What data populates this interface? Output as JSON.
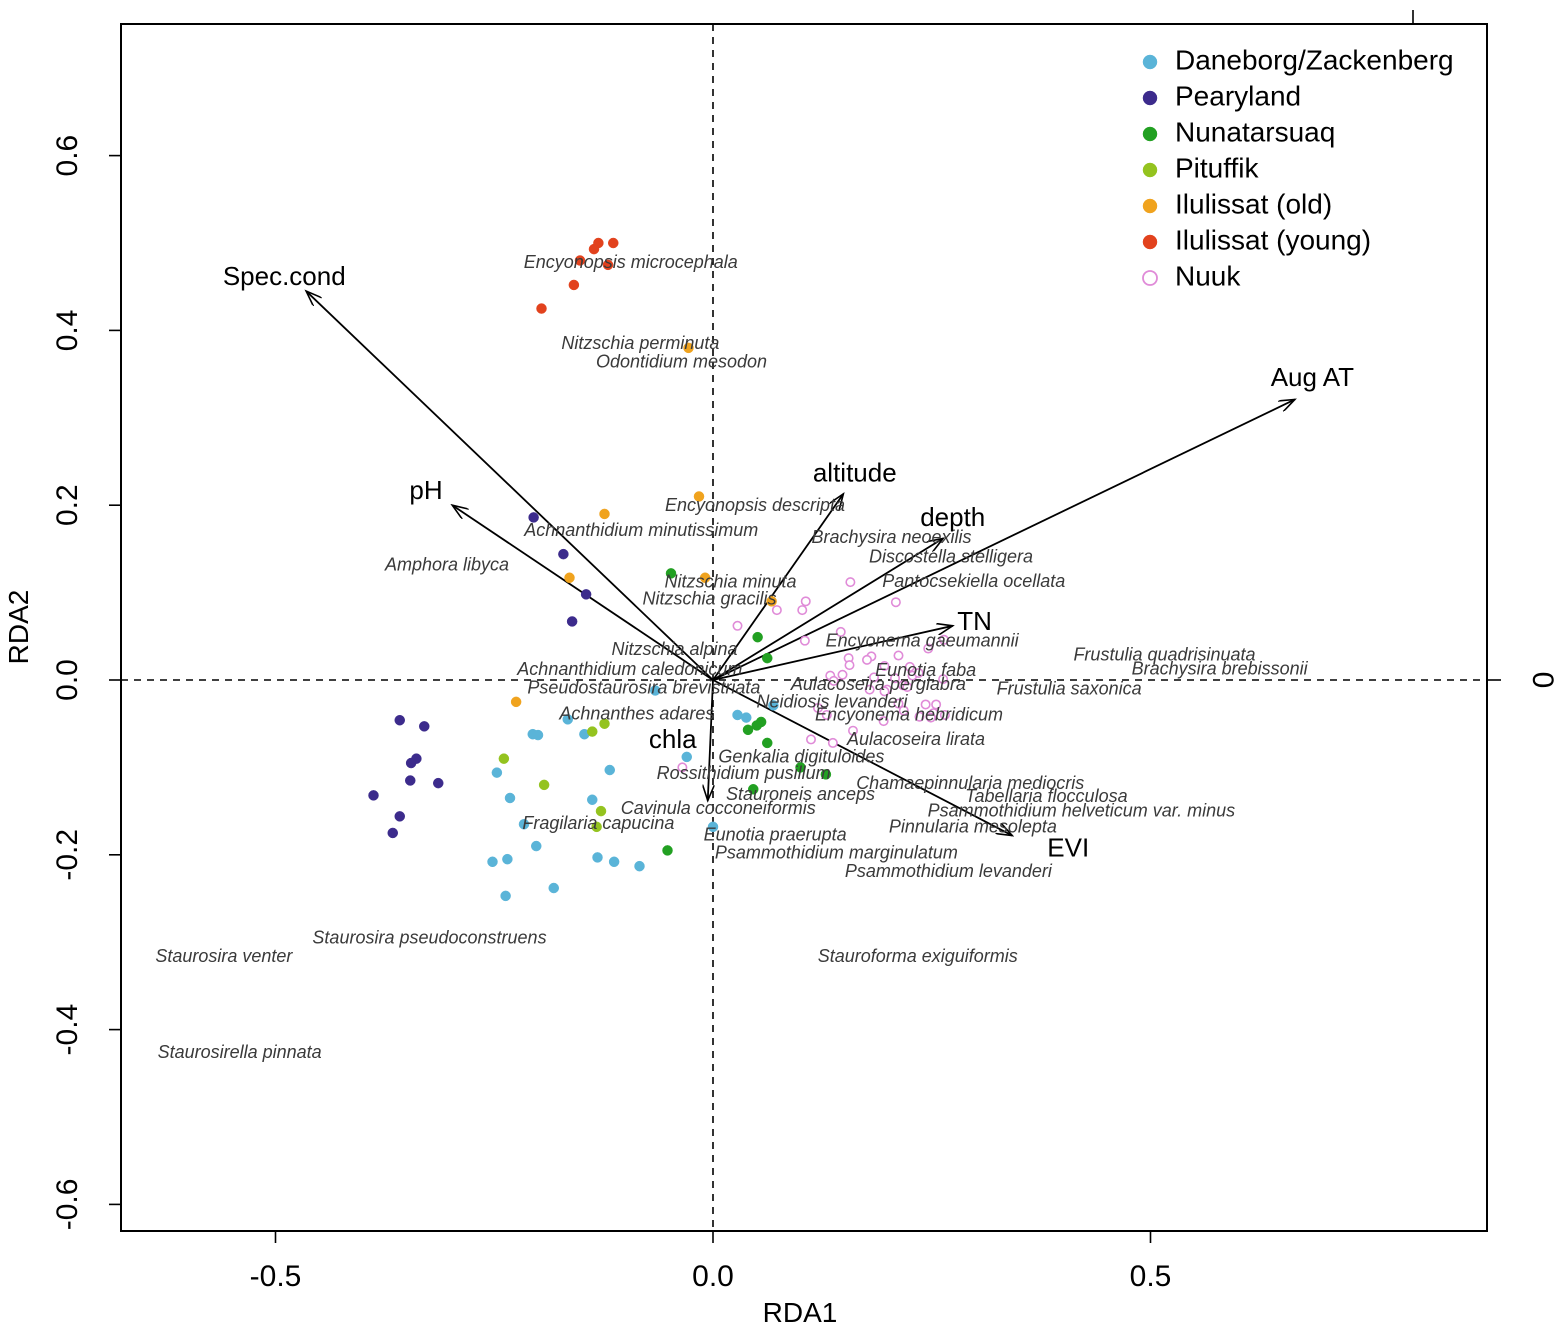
{
  "chart_data": {
    "type": "scatter",
    "subtype": "rda-biplot",
    "title": "",
    "xlabel": "RDA1",
    "ylabel": "RDA2",
    "xlim": [
      -0.68,
      0.89
    ],
    "ylim": [
      -0.63,
      0.75
    ],
    "x_ticks": [
      -0.5,
      0.0,
      0.5
    ],
    "x_tick_labels": [
      "-0.5",
      "0.0",
      "0.5"
    ],
    "y_ticks": [
      -0.6,
      -0.4,
      -0.2,
      0.0,
      0.2,
      0.4,
      0.6
    ],
    "y_tick_labels": [
      "-0.6",
      "-0.4",
      "-0.2",
      "0.0",
      "0.2",
      "0.4",
      "0.6"
    ],
    "top_axis_ticks": [
      0.8
    ],
    "right_axis_ticks": [
      0.0
    ],
    "right_axis_tick_labels": [
      "0"
    ],
    "reference_lines": {
      "x": 0,
      "y": 0,
      "style": "dashed"
    },
    "legend_position": "top-right",
    "series": [
      {
        "name": "Daneborg/Zackenberg",
        "color": "#5ab4d8",
        "marker": "filled-circle",
        "points": [
          [
            -0.066,
            -0.012
          ],
          [
            -0.166,
            -0.045
          ],
          [
            -0.206,
            -0.062
          ],
          [
            -0.2,
            -0.063
          ],
          [
            -0.147,
            -0.062
          ],
          [
            -0.247,
            -0.106
          ],
          [
            -0.232,
            -0.135
          ],
          [
            -0.216,
            -0.165
          ],
          [
            -0.202,
            -0.19
          ],
          [
            -0.252,
            -0.208
          ],
          [
            -0.235,
            -0.205
          ],
          [
            -0.182,
            -0.238
          ],
          [
            -0.237,
            -0.247
          ],
          [
            -0.132,
            -0.203
          ],
          [
            -0.113,
            -0.208
          ],
          [
            -0.084,
            -0.213
          ],
          [
            -0.118,
            -0.103
          ],
          [
            -0.138,
            -0.137
          ],
          [
            -0.03,
            -0.088
          ],
          [
            0.028,
            -0.04
          ],
          [
            0.038,
            -0.043
          ],
          [
            0.069,
            -0.029
          ],
          [
            0.0,
            -0.168
          ]
        ]
      },
      {
        "name": "Pearyland",
        "color": "#3c2b8c",
        "marker": "filled-circle",
        "points": [
          [
            -0.205,
            0.186
          ],
          [
            -0.171,
            0.144
          ],
          [
            -0.145,
            0.098
          ],
          [
            -0.161,
            0.067
          ],
          [
            -0.358,
            -0.046
          ],
          [
            -0.33,
            -0.053
          ],
          [
            -0.339,
            -0.09
          ],
          [
            -0.345,
            -0.095
          ],
          [
            -0.346,
            -0.115
          ],
          [
            -0.314,
            -0.118
          ],
          [
            -0.388,
            -0.132
          ],
          [
            -0.358,
            -0.156
          ],
          [
            -0.366,
            -0.175
          ]
        ]
      },
      {
        "name": "Nunatarsuaq",
        "color": "#22a022",
        "marker": "filled-circle",
        "points": [
          [
            -0.048,
            0.122
          ],
          [
            0.051,
            0.049
          ],
          [
            0.062,
            0.025
          ],
          [
            0.055,
            -0.048
          ],
          [
            0.05,
            -0.052
          ],
          [
            0.04,
            -0.057
          ],
          [
            0.062,
            -0.072
          ],
          [
            0.1,
            -0.1
          ],
          [
            0.129,
            -0.108
          ],
          [
            0.046,
            -0.125
          ],
          [
            -0.052,
            -0.195
          ]
        ]
      },
      {
        "name": "Pituffik",
        "color": "#94c31f",
        "marker": "filled-circle",
        "points": [
          [
            -0.239,
            -0.09
          ],
          [
            -0.193,
            -0.12
          ],
          [
            -0.124,
            -0.05
          ],
          [
            -0.138,
            -0.059
          ],
          [
            -0.128,
            -0.15
          ],
          [
            -0.133,
            -0.168
          ]
        ]
      },
      {
        "name": "Ilulissat (old)",
        "color": "#f0a31e",
        "marker": "filled-circle",
        "points": [
          [
            -0.028,
            0.38
          ],
          [
            -0.016,
            0.21
          ],
          [
            -0.124,
            0.19
          ],
          [
            -0.164,
            0.117
          ],
          [
            -0.009,
            0.117
          ],
          [
            0.067,
            0.09
          ],
          [
            -0.225,
            -0.025
          ]
        ]
      },
      {
        "name": "Ilulissat (young)",
        "color": "#e2421d",
        "marker": "filled-circle",
        "points": [
          [
            -0.131,
            0.5
          ],
          [
            -0.114,
            0.5
          ],
          [
            -0.136,
            0.493
          ],
          [
            -0.152,
            0.48
          ],
          [
            -0.12,
            0.475
          ],
          [
            -0.159,
            0.452
          ],
          [
            -0.196,
            0.425
          ]
        ]
      },
      {
        "name": "Nuuk",
        "color": "#e08bd8",
        "marker": "open-circle",
        "points": [
          [
            0.157,
            0.112
          ],
          [
            0.209,
            0.089
          ],
          [
            0.106,
            0.09
          ],
          [
            0.102,
            0.08
          ],
          [
            0.073,
            0.08
          ],
          [
            0.028,
            0.062
          ],
          [
            0.146,
            0.055
          ],
          [
            0.105,
            0.045
          ],
          [
            0.264,
            0.046
          ],
          [
            0.155,
            0.025
          ],
          [
            0.181,
            0.027
          ],
          [
            0.176,
            0.023
          ],
          [
            0.156,
            0.017
          ],
          [
            0.196,
            0.016
          ],
          [
            0.212,
            0.028
          ],
          [
            0.246,
            0.036
          ],
          [
            0.225,
            0.015
          ],
          [
            0.228,
            0.005
          ],
          [
            0.235,
            0.008
          ],
          [
            0.134,
            0.005
          ],
          [
            0.148,
            0.006
          ],
          [
            0.138,
            -0.001
          ],
          [
            0.184,
            0.003
          ],
          [
            0.208,
            0.002
          ],
          [
            0.263,
            0.001
          ],
          [
            0.217,
            -0.006
          ],
          [
            0.222,
            -0.008
          ],
          [
            0.199,
            -0.011
          ],
          [
            0.179,
            -0.011
          ],
          [
            0.196,
            -0.013
          ],
          [
            0.243,
            -0.028
          ],
          [
            0.255,
            -0.028
          ],
          [
            0.212,
            -0.027
          ],
          [
            0.218,
            -0.035
          ],
          [
            0.252,
            -0.038
          ],
          [
            0.265,
            -0.04
          ],
          [
            0.236,
            -0.042
          ],
          [
            0.249,
            -0.043
          ],
          [
            0.195,
            -0.047
          ],
          [
            0.13,
            -0.04
          ],
          [
            0.12,
            -0.032
          ],
          [
            0.16,
            -0.058
          ],
          [
            0.137,
            -0.072
          ],
          [
            0.112,
            -0.068
          ],
          [
            -0.035,
            -0.1
          ]
        ]
      }
    ],
    "environmental_vectors": [
      {
        "name": "Spec.cond",
        "x": -0.465,
        "y": 0.445,
        "label_x": -0.49,
        "label_y": 0.46
      },
      {
        "name": "Aug AT",
        "x": 0.665,
        "y": 0.321,
        "label_x": 0.685,
        "label_y": 0.344
      },
      {
        "name": "altitude",
        "x": 0.149,
        "y": 0.213,
        "label_x": 0.162,
        "label_y": 0.235
      },
      {
        "name": "depth",
        "x": 0.263,
        "y": 0.162,
        "label_x": 0.274,
        "label_y": 0.184
      },
      {
        "name": "pH",
        "x": -0.298,
        "y": 0.2,
        "label_x": -0.328,
        "label_y": 0.215
      },
      {
        "name": "TN",
        "x": 0.274,
        "y": 0.062,
        "label_x": 0.299,
        "label_y": 0.065
      },
      {
        "name": "EVI",
        "x": 0.342,
        "y": -0.178,
        "label_x": 0.406,
        "label_y": -0.194
      },
      {
        "name": "chla",
        "x": -0.006,
        "y": -0.138,
        "label_x": -0.046,
        "label_y": -0.07
      }
    ],
    "species": [
      {
        "name": "Encyonopsis microcephala",
        "x": -0.094,
        "y": 0.477
      },
      {
        "name": "Nitzschia perminuta",
        "x": -0.083,
        "y": 0.384
      },
      {
        "name": "Odontidium mesodon",
        "x": -0.036,
        "y": 0.363
      },
      {
        "name": "Encyonopsis descripta",
        "x": 0.048,
        "y": 0.199
      },
      {
        "name": "Achnanthidium minutissimum",
        "x": -0.082,
        "y": 0.17
      },
      {
        "name": "Brachysira neoexilis",
        "x": 0.204,
        "y": 0.162
      },
      {
        "name": "Discostella stelligera",
        "x": 0.272,
        "y": 0.14
      },
      {
        "name": "Amphora libyca",
        "x": -0.304,
        "y": 0.131
      },
      {
        "name": "Pantocsekiella ocellata",
        "x": 0.298,
        "y": 0.112
      },
      {
        "name": "Nitzschia minuta",
        "x": 0.02,
        "y": 0.111
      },
      {
        "name": "Nitzschia gracilis",
        "x": -0.004,
        "y": 0.092
      },
      {
        "name": "Encyonema gaeumannii",
        "x": 0.239,
        "y": 0.044
      },
      {
        "name": "Frustulia quadrisinuata",
        "x": 0.516,
        "y": 0.028
      },
      {
        "name": "Nitzschia alpina",
        "x": -0.044,
        "y": 0.034
      },
      {
        "name": "Eunotia faba",
        "x": 0.243,
        "y": 0.01
      },
      {
        "name": "Brachysira brebissonii",
        "x": 0.579,
        "y": 0.012
      },
      {
        "name": "Achnanthidium caledonicum",
        "x": -0.095,
        "y": 0.011
      },
      {
        "name": "Aulacoseira perglabra",
        "x": 0.189,
        "y": -0.006
      },
      {
        "name": "Frustulia saxonica",
        "x": 0.407,
        "y": -0.011
      },
      {
        "name": "Pseudostaurosira brevistriata",
        "x": -0.079,
        "y": -0.01
      },
      {
        "name": "Neidiosis levanderi",
        "x": 0.136,
        "y": -0.026
      },
      {
        "name": "Achnanthes adares",
        "x": -0.087,
        "y": -0.04
      },
      {
        "name": "Encyonema hebridicum",
        "x": 0.224,
        "y": -0.041
      },
      {
        "name": "Aulacoseira lirata",
        "x": 0.232,
        "y": -0.069
      },
      {
        "name": "Genkalia digituloides",
        "x": 0.101,
        "y": -0.089
      },
      {
        "name": "Rossithidium pusillum",
        "x": 0.035,
        "y": -0.108
      },
      {
        "name": "Chamaepinnularia mediocris",
        "x": 0.294,
        "y": -0.119
      },
      {
        "name": "Stauroneis anceps",
        "x": 0.1,
        "y": -0.132
      },
      {
        "name": "Tabellaria flocculosa",
        "x": 0.381,
        "y": -0.134
      },
      {
        "name": "Cavinula cocconeiformis",
        "x": 0.006,
        "y": -0.148
      },
      {
        "name": "Psammothidium helveticum var. minus",
        "x": 0.421,
        "y": -0.151
      },
      {
        "name": "Fragilaria capucina",
        "x": -0.131,
        "y": -0.165
      },
      {
        "name": "Pinnularia mesolepta",
        "x": 0.297,
        "y": -0.169
      },
      {
        "name": "Eunotia praerupta",
        "x": 0.071,
        "y": -0.178
      },
      {
        "name": "Psammothidium marginulatum",
        "x": 0.141,
        "y": -0.199
      },
      {
        "name": "Psammothidium levanderi",
        "x": 0.269,
        "y": -0.22
      },
      {
        "name": "Staurosira pseudoconstruens",
        "x": -0.324,
        "y": -0.296
      },
      {
        "name": "Staurosira venter",
        "x": -0.559,
        "y": -0.317
      },
      {
        "name": "Stauroforma exiguiformis",
        "x": 0.234,
        "y": -0.317
      },
      {
        "name": "Staurosirella pinnata",
        "x": -0.541,
        "y": -0.427
      }
    ]
  }
}
